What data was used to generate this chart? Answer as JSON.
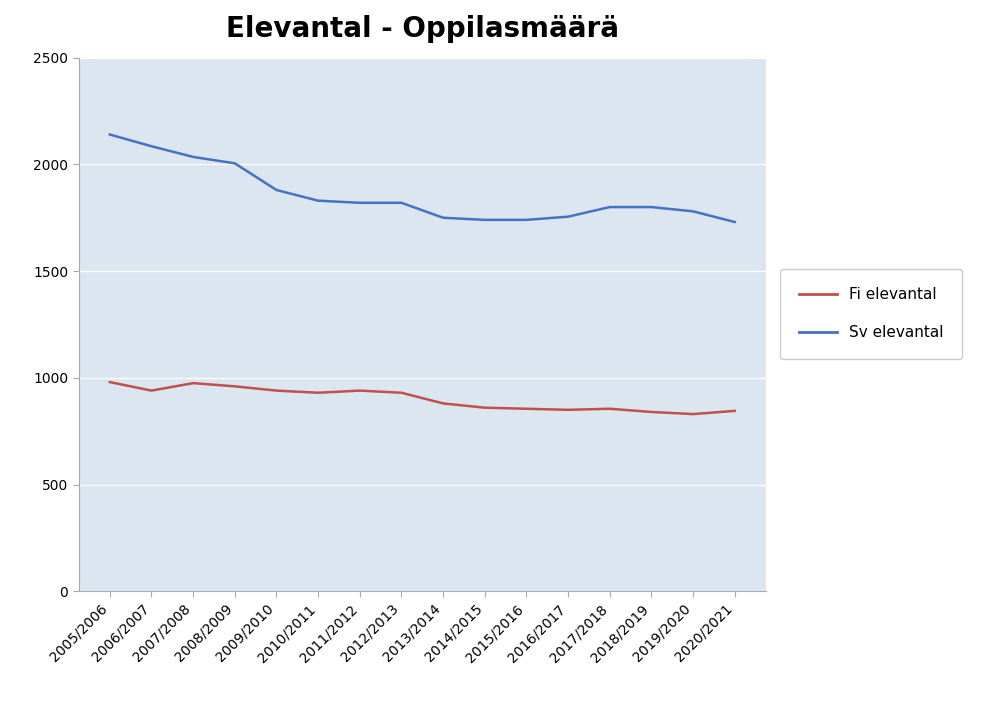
{
  "title": "Elevantal - Oppilasmäärä",
  "categories": [
    "2005/2006",
    "2006/2007",
    "2007/2008",
    "2008/2009",
    "2009/2010",
    "2010/2011",
    "2011/2012",
    "2012/2013",
    "2013/2014",
    "2014/2015",
    "2015/2016",
    "2016/2017",
    "2017/2018",
    "2018/2019",
    "2019/2020",
    "2020/2021"
  ],
  "sv_values": [
    2140,
    2085,
    2035,
    2005,
    1880,
    1830,
    1820,
    1820,
    1750,
    1740,
    1740,
    1755,
    1800,
    1800,
    1780,
    1730
  ],
  "fi_values": [
    980,
    940,
    975,
    960,
    940,
    930,
    940,
    930,
    880,
    860,
    855,
    850,
    855,
    840,
    830,
    845
  ],
  "sv_color": "#4472C4",
  "fi_color": "#C0504D",
  "sv_label": "Sv elevantal",
  "fi_label": "Fi elevantal",
  "ylim": [
    0,
    2500
  ],
  "yticks": [
    0,
    500,
    1000,
    1500,
    2000,
    2500
  ],
  "plot_bg_color": "#DCE6F1",
  "outer_bg_color": "#FFFFFF",
  "title_fontsize": 20,
  "tick_fontsize": 10,
  "legend_fontsize": 11,
  "grid_color": "#FFFFFF",
  "spine_color": "#AAAAAA"
}
